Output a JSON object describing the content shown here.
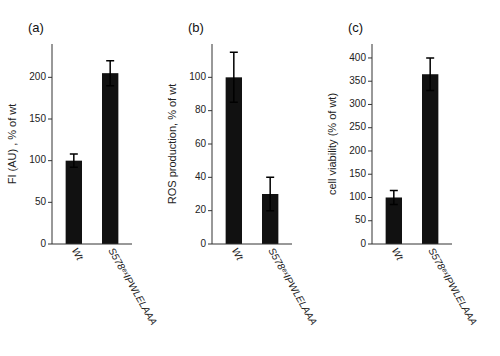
{
  "chart_data": [
    {
      "type": "bar",
      "title": "(a)",
      "ylabel": "FI (AU) , % of wt",
      "categories": [
        "Wt",
        "S578ᵉˣIPWLELAAA"
      ],
      "values": [
        100,
        205
      ],
      "errors": [
        8,
        15
      ],
      "ylim": [
        0,
        240
      ],
      "yticks": [
        0,
        50,
        100,
        150,
        200
      ],
      "color": "#111111",
      "grid": false
    },
    {
      "type": "bar",
      "title": "(b)",
      "ylabel": "ROS production, % of wt",
      "categories": [
        "Wt",
        "S578ᵉˣIPWLELAAA"
      ],
      "values": [
        100,
        30
      ],
      "errors": [
        15,
        10
      ],
      "ylim": [
        0,
        120
      ],
      "yticks": [
        0,
        20,
        40,
        60,
        80,
        100
      ],
      "color": "#111111",
      "grid": false
    },
    {
      "type": "bar",
      "title": "(c)",
      "ylabel": "cell viability (% of wt)",
      "categories": [
        "Wt",
        "S578ᵉˣIPWLELAAA"
      ],
      "values": [
        100,
        365
      ],
      "errors": [
        15,
        35
      ],
      "ylim": [
        0,
        430
      ],
      "yticks": [
        0,
        50,
        100,
        150,
        200,
        250,
        300,
        350,
        400
      ],
      "color": "#111111",
      "grid": false
    }
  ]
}
